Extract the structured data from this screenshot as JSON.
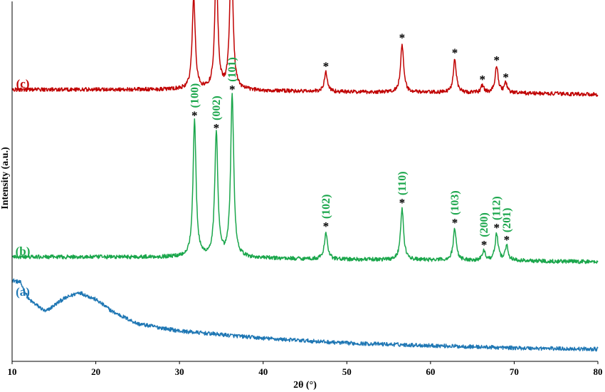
{
  "chart_data": {
    "type": "line",
    "xlabel": "2θ (°)",
    "ylabel": "Intensity (a.u.)",
    "xlim": [
      10,
      80
    ],
    "xticks": [
      10,
      20,
      30,
      40,
      50,
      60,
      70,
      80
    ],
    "y_ticks_shown": false,
    "grid": false,
    "legend": "none",
    "peak_marker": "*",
    "series": [
      {
        "name": "(a)",
        "color": "#1f77b4",
        "profile": {
          "baseline": [
            [
              10,
              0.3
            ],
            [
              11,
              0.29
            ],
            [
              12,
              0.22
            ],
            [
              14,
              0.17
            ],
            [
              16,
              0.22
            ],
            [
              18,
              0.25
            ],
            [
              20,
              0.22
            ],
            [
              22,
              0.17
            ],
            [
              25,
              0.12
            ],
            [
              30,
              0.09
            ],
            [
              35,
              0.075
            ],
            [
              40,
              0.06
            ],
            [
              50,
              0.04
            ],
            [
              60,
              0.03
            ],
            [
              70,
              0.02
            ],
            [
              80,
              0.015
            ]
          ],
          "noise": 0.008
        },
        "peaks": []
      },
      {
        "name": "(b)",
        "color": "#1aa64b",
        "profile": {
          "baseline": [
            [
              10,
              0.06
            ],
            [
              20,
              0.06
            ],
            [
              30,
              0.06
            ],
            [
              50,
              0.05
            ],
            [
              70,
              0.045
            ],
            [
              80,
              0.04
            ]
          ],
          "noise": 0.008
        },
        "peaks": [
          {
            "x": 31.8,
            "height": 0.56,
            "hkl": "(100)"
          },
          {
            "x": 34.4,
            "height": 0.51,
            "hkl": "(002)"
          },
          {
            "x": 36.3,
            "height": 0.67,
            "hkl": "(101)"
          },
          {
            "x": 47.5,
            "height": 0.11,
            "hkl": "(102)"
          },
          {
            "x": 56.6,
            "height": 0.21,
            "hkl": "(110)"
          },
          {
            "x": 62.9,
            "height": 0.13,
            "hkl": "(103)"
          },
          {
            "x": 66.4,
            "height": 0.04,
            "hkl": "(200)"
          },
          {
            "x": 67.9,
            "height": 0.11,
            "hkl": "(112)"
          },
          {
            "x": 69.1,
            "height": 0.06,
            "hkl": "(201)"
          }
        ]
      },
      {
        "name": "(c)",
        "color": "#c00000",
        "profile": {
          "baseline": [
            [
              10,
              0.06
            ],
            [
              20,
              0.06
            ],
            [
              30,
              0.06
            ],
            [
              50,
              0.05
            ],
            [
              70,
              0.045
            ],
            [
              80,
              0.04
            ]
          ],
          "noise": 0.008
        },
        "peaks": [
          {
            "x": 31.7,
            "height": 0.38
          },
          {
            "x": 34.4,
            "height": 0.51
          },
          {
            "x": 36.2,
            "height": 0.6
          },
          {
            "x": 47.5,
            "height": 0.08
          },
          {
            "x": 56.6,
            "height": 0.2
          },
          {
            "x": 62.9,
            "height": 0.14
          },
          {
            "x": 66.2,
            "height": 0.03
          },
          {
            "x": 67.9,
            "height": 0.11
          },
          {
            "x": 69.0,
            "height": 0.04
          }
        ]
      }
    ]
  }
}
